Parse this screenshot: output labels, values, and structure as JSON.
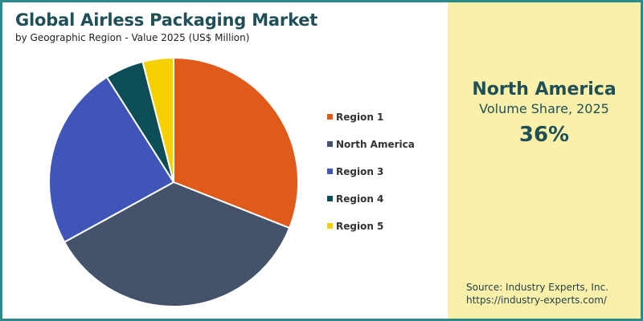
{
  "header": {
    "title": "Global Airless Packaging Market",
    "subtitle": "by Geographic Region - Value 2025 (US$ Million)"
  },
  "chart_data": {
    "type": "pie",
    "title": "Global Airless Packaging Market",
    "subtitle": "by Geographic Region - Value 2025 (US$ Million)",
    "categories": [
      "Region 1",
      "North America",
      "Region 3",
      "Region 4",
      "Region 5"
    ],
    "values": [
      31,
      36,
      24,
      5,
      4
    ],
    "colors": [
      "#e05a1a",
      "#44536a",
      "#3f55b8",
      "#0d4d55",
      "#f5d000"
    ],
    "legend_position": "right"
  },
  "highlight": {
    "region": "North America",
    "metric": "Volume Share, 2025",
    "value": "36%"
  },
  "source": {
    "line1": "Source: Industry Experts, Inc.",
    "line2": "https://industry-experts.com/"
  }
}
